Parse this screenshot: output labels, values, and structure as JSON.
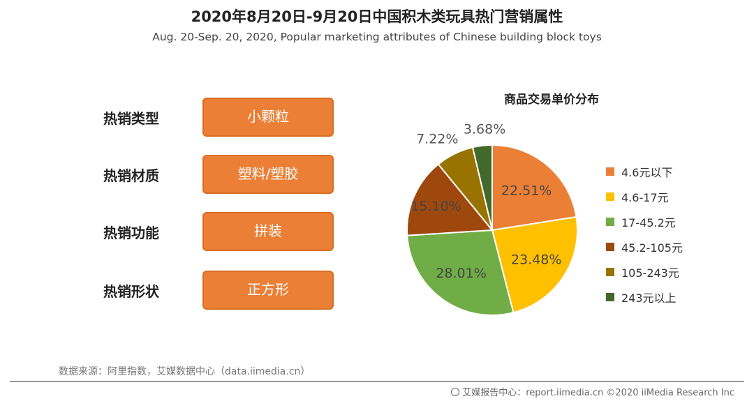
{
  "title": "2020年8月20日-9月20日中国积木类玩具热门营销属性",
  "subtitle": "Aug. 20-Sep. 20, 2020, Popular marketing attributes of Chinese building block toys",
  "attributes": [
    {
      "label": "热销类型",
      "value": "小颗粒"
    },
    {
      "label": "热销材质",
      "value": "塑料/塑胶"
    },
    {
      "label": "热销功能",
      "value": "拼装"
    },
    {
      "label": "热销形状",
      "value": "正方形"
    }
  ],
  "chart_data": {
    "type": "pie",
    "title": "商品交易单价分布",
    "categories": [
      "4.6元以下",
      "4.6-17元",
      "17-45.2元",
      "45.2-105元",
      "105-243元",
      "243元以上"
    ],
    "values": [
      22.51,
      23.48,
      28.01,
      15.1,
      7.22,
      3.68
    ],
    "labels": [
      "22.51%",
      "23.48%",
      "28.01%",
      "15.10%",
      "7.22%",
      "3.68%"
    ],
    "colors": [
      "#ea7f35",
      "#ffc000",
      "#70ad47",
      "#9e480e",
      "#997300",
      "#43682b"
    ],
    "legend_position": "right"
  },
  "source": "数据来源：阿里指数，艾媒数据中心（data.iimedia.cn）",
  "footer": "艾媒报告中心：report.iimedia.cn ©2020 iiMedia Research Inc"
}
